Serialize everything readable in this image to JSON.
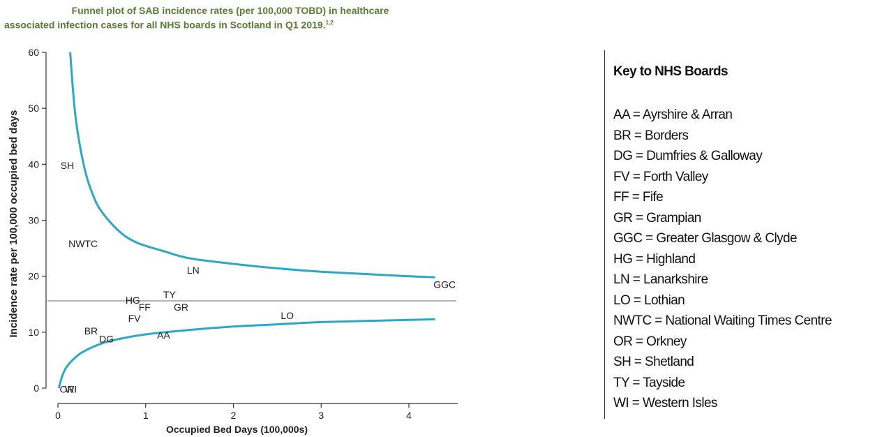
{
  "chart_data": {
    "type": "scatter",
    "title_line1": "Funnel plot of SAB incidence rates (per 100,000 TOBD) in healthcare",
    "title_line2": "associated infection cases for all NHS boards in Scotland in Q1 2019.",
    "title_sup": "1,2",
    "xlabel": "Occupied Bed Days (100,000s)",
    "ylabel": "Incidence rate per 100,000 occupied bed days",
    "xlim": [
      -0.15,
      4.6
    ],
    "ylim": [
      -2,
      61
    ],
    "xticks": [
      "0",
      "1",
      "2",
      "3",
      "4"
    ],
    "xtick_values": [
      0,
      1,
      2,
      3,
      4
    ],
    "yticks": [
      "0",
      "10",
      "20",
      "30",
      "40",
      "50",
      "60"
    ],
    "ytick_values": [
      0,
      10,
      20,
      30,
      40,
      50,
      60
    ],
    "mean_line": 15.6,
    "upper_limit": [
      {
        "x": 0.14,
        "y": 60
      },
      {
        "x": 0.2,
        "y": 48.5
      },
      {
        "x": 0.3,
        "y": 39.5
      },
      {
        "x": 0.4,
        "y": 34.5
      },
      {
        "x": 0.5,
        "y": 31.5
      },
      {
        "x": 0.7,
        "y": 28
      },
      {
        "x": 0.9,
        "y": 26
      },
      {
        "x": 1.2,
        "y": 24.5
      },
      {
        "x": 1.5,
        "y": 23.2
      },
      {
        "x": 2.0,
        "y": 22.2
      },
      {
        "x": 2.5,
        "y": 21.4
      },
      {
        "x": 3.0,
        "y": 20.8
      },
      {
        "x": 3.5,
        "y": 20.4
      },
      {
        "x": 4.0,
        "y": 20.0
      },
      {
        "x": 4.3,
        "y": 19.8
      }
    ],
    "lower_limit": [
      {
        "x": 0.01,
        "y": 0
      },
      {
        "x": 0.05,
        "y": 2.2
      },
      {
        "x": 0.1,
        "y": 3.8
      },
      {
        "x": 0.2,
        "y": 5.5
      },
      {
        "x": 0.3,
        "y": 6.6
      },
      {
        "x": 0.5,
        "y": 8.0
      },
      {
        "x": 0.7,
        "y": 8.8
      },
      {
        "x": 1.0,
        "y": 9.6
      },
      {
        "x": 1.5,
        "y": 10.4
      },
      {
        "x": 2.0,
        "y": 11.0
      },
      {
        "x": 2.5,
        "y": 11.4
      },
      {
        "x": 3.0,
        "y": 11.8
      },
      {
        "x": 3.5,
        "y": 12.0
      },
      {
        "x": 4.0,
        "y": 12.2
      },
      {
        "x": 4.3,
        "y": 12.3
      }
    ],
    "points": [
      {
        "label": "SH",
        "x": 0.03,
        "y": 39.8
      },
      {
        "label": "NWTC",
        "x": 0.12,
        "y": 25.8
      },
      {
        "label": "LN",
        "x": 1.47,
        "y": 21.1
      },
      {
        "label": "GGC",
        "x": 4.28,
        "y": 18.5
      },
      {
        "label": "TY",
        "x": 1.2,
        "y": 16.7
      },
      {
        "label": "HG",
        "x": 0.77,
        "y": 15.7
      },
      {
        "label": "FF",
        "x": 0.92,
        "y": 14.5
      },
      {
        "label": "GR",
        "x": 1.32,
        "y": 14.5
      },
      {
        "label": "FV",
        "x": 0.8,
        "y": 12.5
      },
      {
        "label": "LO",
        "x": 2.54,
        "y": 13.0
      },
      {
        "label": "BR",
        "x": 0.3,
        "y": 10.2
      },
      {
        "label": "DG",
        "x": 0.47,
        "y": 8.8
      },
      {
        "label": "AA",
        "x": 1.13,
        "y": 9.5
      },
      {
        "label": "OR",
        "x": 0.02,
        "y": -0.2
      },
      {
        "label": "WI",
        "x": 0.08,
        "y": -0.2
      }
    ],
    "colors": {
      "limits": "#2ba8c9",
      "mean": "#6b6b6b",
      "title": "#5a7b33",
      "axis": "#333333"
    }
  },
  "key": {
    "title": "Key to NHS Boards",
    "items": [
      "AA = Ayrshire & Arran",
      "BR = Borders",
      "DG = Dumfries & Galloway",
      "FV = Forth Valley",
      "FF = Fife",
      "GR = Grampian",
      "GGC = Greater Glasgow & Clyde",
      "HG = Highland",
      "LN = Lanarkshire",
      "LO = Lothian",
      "NWTC = National Waiting Times Centre",
      "OR = Orkney",
      "SH = Shetland",
      "TY = Tayside",
      "WI = Western Isles"
    ]
  }
}
